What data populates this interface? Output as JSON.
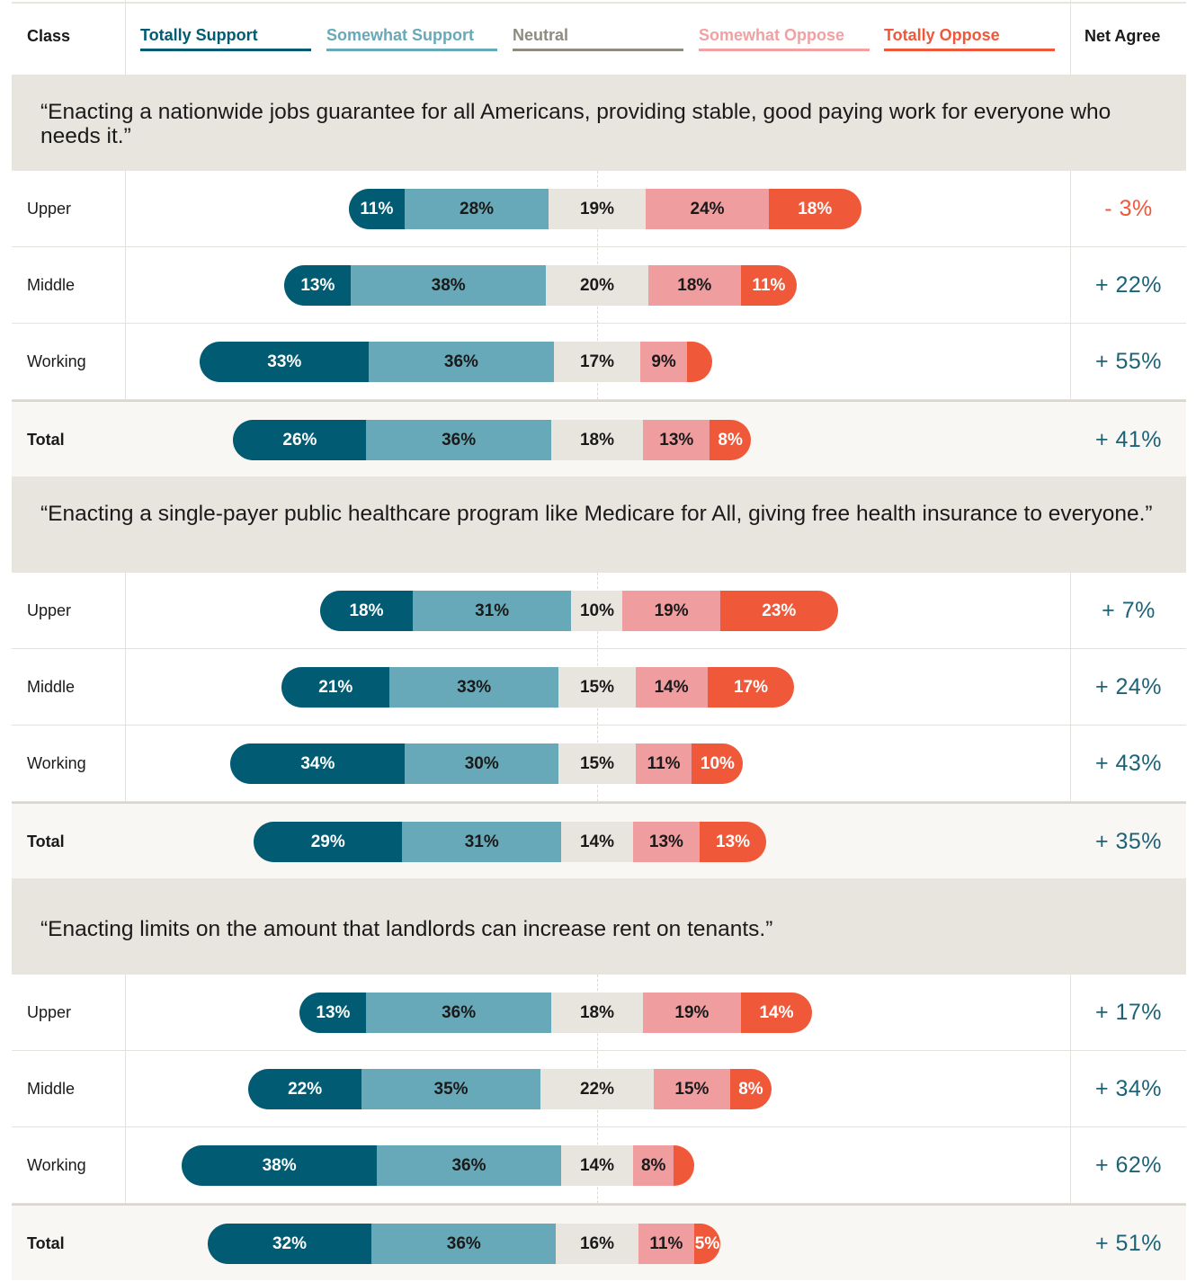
{
  "header": {
    "class_label": "Class",
    "net_label": "Net Agree"
  },
  "legend": [
    {
      "label": "Totally Support",
      "color": "#005b73"
    },
    {
      "label": "Somewhat Support",
      "color": "#67a9b8"
    },
    {
      "label": "Neutral",
      "color": "#8e8c7e"
    },
    {
      "label": "Somewhat Oppose",
      "color": "#f2a0a1"
    },
    {
      "label": "Totally Oppose",
      "color": "#f0583a"
    }
  ],
  "colors": {
    "totally_support": "#005b73",
    "somewhat_support": "#67a9b8",
    "neutral": "#e8e5de",
    "somewhat_oppose": "#f09da0",
    "totally_oppose": "#f0583a",
    "net_positive": "#1c6378",
    "net_negative": "#f0583a"
  },
  "chart_data": {
    "type": "bar",
    "orientation": "horizontal",
    "stacked": true,
    "diverging": true,
    "series_names": [
      "Totally Support",
      "Somewhat Support",
      "Neutral",
      "Somewhat Oppose",
      "Totally Oppose"
    ],
    "sections": [
      {
        "title": "“Enacting a nationwide jobs guarantee for all Americans, providing stable, good paying work for everyone who needs it.”",
        "rows": [
          {
            "label": "Upper",
            "values": [
              11,
              28,
              19,
              24,
              18
            ],
            "labels": [
              "11%",
              "28%",
              "19%",
              "24%",
              "18%"
            ],
            "net": "- 3%",
            "net_value": -3
          },
          {
            "label": "Middle",
            "values": [
              13,
              38,
              20,
              18,
              11
            ],
            "labels": [
              "13%",
              "38%",
              "20%",
              "18%",
              "11%"
            ],
            "net": "+ 22%",
            "net_value": 22
          },
          {
            "label": "Working",
            "values": [
              33,
              36,
              17,
              9,
              5
            ],
            "labels": [
              "33%",
              "36%",
              "17%",
              "9%",
              ""
            ],
            "net": "+ 55%",
            "net_value": 55
          },
          {
            "label": "Total",
            "values": [
              26,
              36,
              18,
              13,
              8
            ],
            "labels": [
              "26%",
              "36%",
              "18%",
              "13%",
              "8%"
            ],
            "net": "+ 41%",
            "net_value": 41,
            "is_total": true
          }
        ]
      },
      {
        "title": "“Enacting a single-payer public healthcare program like Medicare for All, giving free health insurance to everyone.”",
        "rows": [
          {
            "label": "Upper",
            "values": [
              18,
              31,
              10,
              19,
              23
            ],
            "labels": [
              "18%",
              "31%",
              "10%",
              "19%",
              "23%"
            ],
            "net": "+ 7%",
            "net_value": 7
          },
          {
            "label": "Middle",
            "values": [
              21,
              33,
              15,
              14,
              17
            ],
            "labels": [
              "21%",
              "33%",
              "15%",
              "14%",
              "17%"
            ],
            "net": "+ 24%",
            "net_value": 24
          },
          {
            "label": "Working",
            "values": [
              34,
              30,
              15,
              11,
              10
            ],
            "labels": [
              "34%",
              "30%",
              "15%",
              "11%",
              "10%"
            ],
            "net": "+ 43%",
            "net_value": 43
          },
          {
            "label": "Total",
            "values": [
              29,
              31,
              14,
              13,
              13
            ],
            "labels": [
              "29%",
              "31%",
              "14%",
              "13%",
              "13%"
            ],
            "net": "+ 35%",
            "net_value": 35,
            "is_total": true
          }
        ]
      },
      {
        "title": "“Enacting limits on the amount that landlords can increase rent on tenants.”",
        "rows": [
          {
            "label": "Upper",
            "values": [
              13,
              36,
              18,
              19,
              14
            ],
            "labels": [
              "13%",
              "36%",
              "18%",
              "19%",
              "14%"
            ],
            "net": "+ 17%",
            "net_value": 17
          },
          {
            "label": "Middle",
            "values": [
              22,
              35,
              22,
              15,
              8
            ],
            "labels": [
              "22%",
              "35%",
              "22%",
              "15%",
              "8%"
            ],
            "net": "+ 34%",
            "net_value": 34
          },
          {
            "label": "Working",
            "values": [
              38,
              36,
              14,
              8,
              4
            ],
            "labels": [
              "38%",
              "36%",
              "14%",
              "8%",
              ""
            ],
            "net": "+ 62%",
            "net_value": 62
          },
          {
            "label": "Total",
            "values": [
              32,
              36,
              16,
              11,
              5
            ],
            "labels": [
              "32%",
              "36%",
              "16%",
              "11%",
              "5%"
            ],
            "net": "+ 51%",
            "net_value": 51,
            "is_total": true
          }
        ]
      }
    ]
  }
}
